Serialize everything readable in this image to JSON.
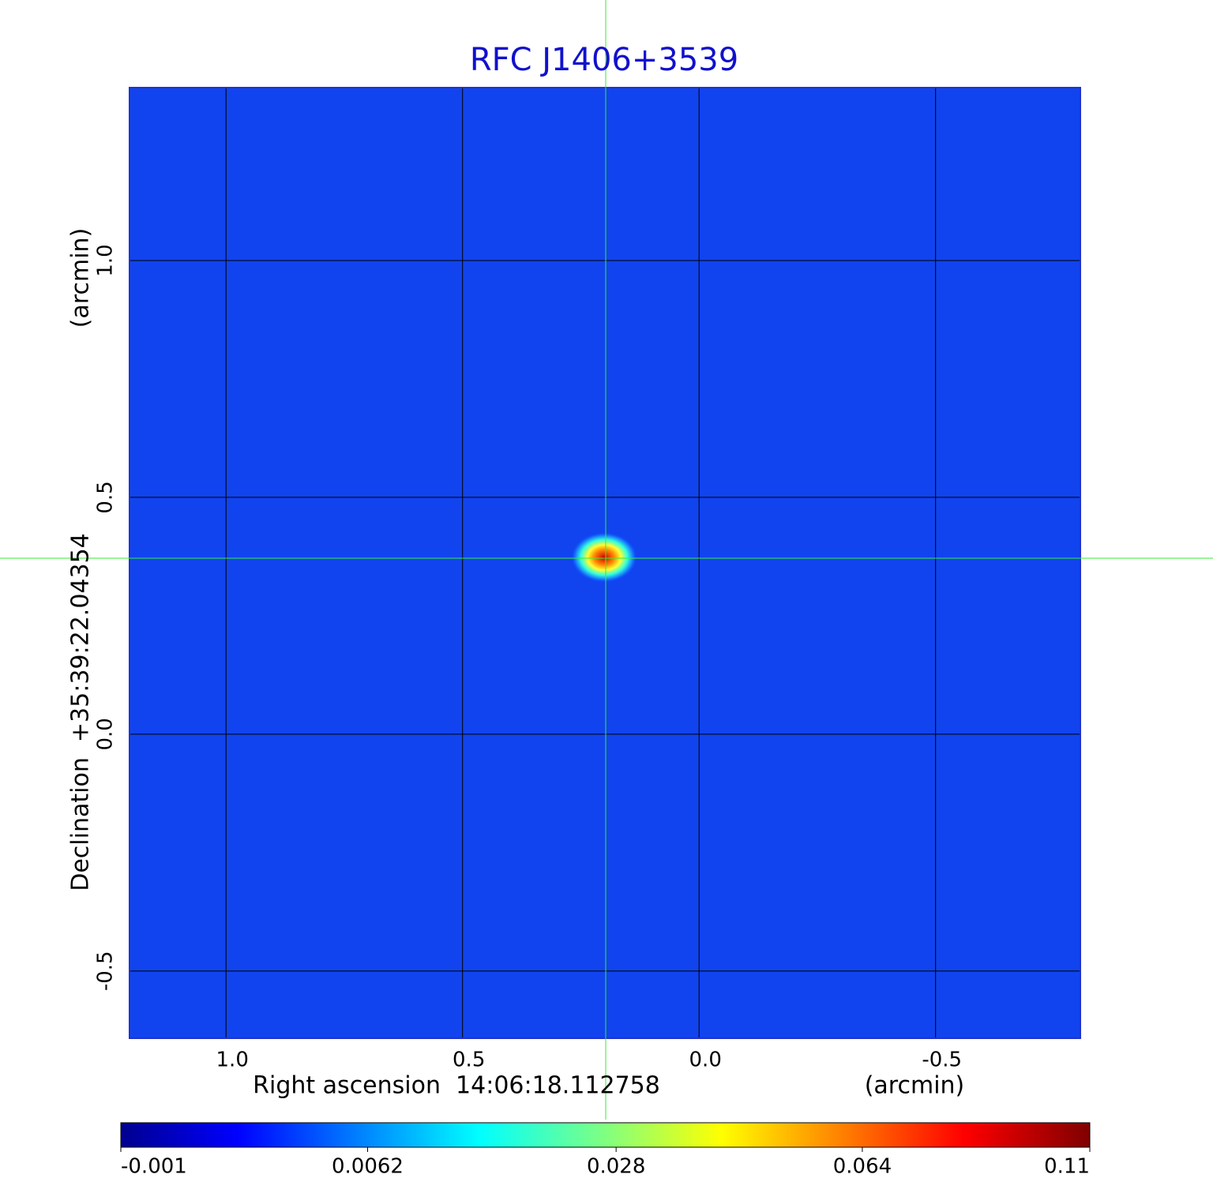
{
  "chart_data": {
    "type": "image",
    "title": "RFC J1406+3539",
    "xlabel": "Right ascension  14:06:18.112758",
    "xunit": "(arcmin)",
    "ylabel": "Declination  +35:39:22.04354",
    "yunit": "(arcmin)",
    "xlim": [
      1.204,
      -0.806
    ],
    "xticks": [
      {
        "value": 1,
        "label": "1.0"
      },
      {
        "value": 0.5,
        "label": "0.5"
      },
      {
        "value": 0,
        "label": "0.0"
      },
      {
        "value": -0.5,
        "label": "-0.5"
      }
    ],
    "ylim": [
      -0.642,
      1.365
    ],
    "yticks": [
      {
        "value": 1,
        "label": "1.0"
      },
      {
        "value": 0.5,
        "label": "0.5"
      },
      {
        "value": 0,
        "label": "0.0"
      },
      {
        "value": -0.5,
        "label": "-0.5"
      }
    ],
    "grid": true,
    "colorbar": {
      "scale": "sqrt",
      "lim": [
        -0.001,
        0.11
      ],
      "ticks": [
        -0.001,
        0.0062,
        0.028,
        0.064,
        0.11
      ]
    }
  }
}
